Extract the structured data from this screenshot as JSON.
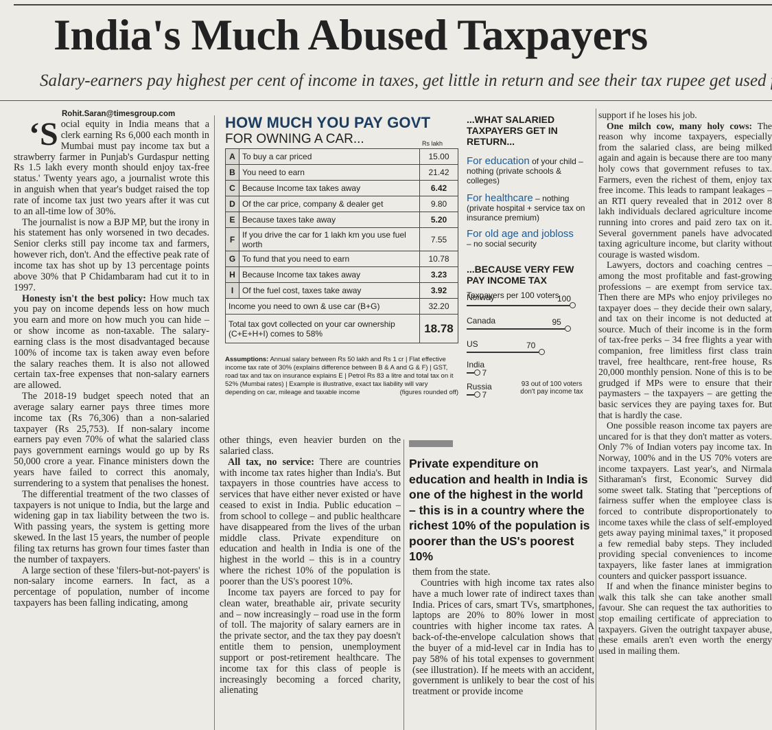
{
  "headline": "India's Much Abused Taxpayers",
  "subheadline": "Salary-earners pay highest per cent of income in taxes, get little in return and see their tax rupee get used for votes",
  "byline": "Rohit.Saran@timesgroup.com",
  "col1": {
    "dropcap": "‘S",
    "p1": "ocial equity in India means that a clerk earning Rs 6,000 each month in Mumbai must pay income tax but a strawberry farmer in Punjab's Gurdaspur netting Rs 1.5 lakh every month should enjoy tax-free status.' Twenty years ago, a journalist wrote this in anguish when that year's budget raised the top rate of income tax just two years after it was cut to an all-time low of 30%.",
    "p2": "The journalist is now a BJP MP, but the irony in his statement has only worsened in two decades. Senior clerks still pay income tax and farmers, however rich, don't. And the effective peak rate of income tax has shot up by 13 percentage points above 30% that P Chidambaram had cut it to in 1997.",
    "p3_lead": "Honesty isn't the best policy:",
    "p3": "How much tax you pay on income depends less on how much you earn and more on how much you can hide – or show income as non-taxable. The salary-earning class is the most disadvantaged because 100% of income tax is taken away even before the salary reaches them. It is also not allowed certain tax-free expenses that non-salary earners are allowed.",
    "p4": "The 2018-19 budget speech noted that an average salary earner pays three times more income tax (Rs 76,306) than a non-salaried taxpayer (Rs 25,753). If non-salary income earners pay even 70% of what the salaried class pays government earnings would go up by Rs 50,000 crore a year. Finance ministers down the years have failed to correct this anomaly, surrendering to a system that penalises the honest.",
    "p5": "The differential treatment of the two classes of taxpayers is not unique to India, but the large and widening gap in tax liability between the two is. With passing years, the system is getting more skewed. In the last 15 years, the number of people filing tax returns has grown four times faster than the number of taxpayers.",
    "p6": "A large section of these 'filers-but-not-payers' is non-salary income earners. In fact, as a percentage of population, number of income taxpayers has been falling indicating, among"
  },
  "col2": {
    "p1": "other things, even heavier burden on the salaried class.",
    "p2_lead": "All tax, no service:",
    "p2": "There are countries with income tax rates higher than India's. But taxpayers in those countries have access to services that have either never existed or have ceased to exist in India. Public education – from school to college – and public healthcare have disappeared from the lives of the urban middle class. Private expenditure on education and health in India is one of the highest in the world – this is in a country where the richest 10% of the population is poorer than the US's poorest 10%.",
    "p3": "Income tax payers are forced to pay for clean water, breathable air, private security and – now increasingly – road use in the form of toll. The majority of salary earners are in the private sector, and the tax they pay doesn't entitle them to pension, unemployment support or post-retirement healthcare. The income tax for this class of people is increasingly becoming a forced charity, alienating"
  },
  "pullquote": "Private expenditure on education and health in India is one of the highest in the world – this is in a country where the richest 10% of the population is poorer than the US's poorest 10%",
  "col3": {
    "p1": "them from the state.",
    "p2": "Countries with high income tax rates also have a much lower rate of indirect taxes than India. Prices of cars, smart TVs, smartphones, laptops are 20% to 80% lower in most countries with higher income tax rates. A back-of-the-envelope calculation shows that the buyer of a mid-level car in India has to pay 58% of his total expenses to government (see illustration). If he meets with an accident, government is unlikely to bear the cost of his treatment or provide income"
  },
  "col4": {
    "p1": "support if he loses his job.",
    "p2_lead": "One milch cow, many holy cows:",
    "p2": "The reason why income taxpayers, especially from the salaried class, are being milked again and again is because there are too many holy cows that government refuses to tax. Farmers, even the richest of them, enjoy tax free income. This leads to rampant leakages – an RTI query revealed that in 2012 over 8 lakh individuals declared agriculture income running into crores and paid zero tax on it. Several government panels have advocated taxing agriculture income, but clarity without courage is wasted wisdom.",
    "p3": "Lawyers, doctors and coaching centres – among the most profitable and fast-growing professions – are exempt from service tax. Then there are MPs who enjoy privileges no taxpayer does – they decide their own salary, and tax on their income is not deducted at source. Much of their income is in the form of tax-free perks – 34 free flights a year with companion, free limitless first class train travel, free healthcare, rent-free house, Rs 20,000 monthly pension. None of this is to be grudged if MPs were to ensure that their paymasters – the taxpayers – are getting the basic services they are paying taxes for. But that is hardly the case.",
    "p4": "One possible reason income tax payers are uncared for is that they don't matter as voters. Only 7% of Indian voters pay income tax. In Norway, 100% and in the US 70% voters are income taxpayers. Last year's, and Nirmala Sitharaman's first, Economic Survey did some sweet talk. Stating that \"perceptions of fairness suffer when the employee class is forced to contribute disproportionately to income taxes while the class of self-employed gets away paying minimal taxes,\" it proposed a few remedial baby steps. They included providing special conveniences to income taxpayers, like faster lanes at immigration counters and quicker passport issuance.",
    "p5": "If and when the finance minister begins to walk this talk she can take another small favour. She can request the tax authorities to stop emailing certificate of appreciation to taxpayers. Given the outright taxpayer abuse, these emails aren't even worth the energy used in mailing them."
  },
  "box": {
    "title": "HOW MUCH YOU PAY GOVT",
    "subtitle": "FOR OWNING A CAR...",
    "unit": "Rs lakh",
    "rows": [
      {
        "key": "A",
        "label": "To buy a car priced",
        "value": "15.00",
        "bold": false
      },
      {
        "key": "B",
        "label": "You need to earn",
        "value": "21.42",
        "bold": false
      },
      {
        "key": "C",
        "label": "Because Income tax takes away",
        "value": "6.42",
        "bold": true
      },
      {
        "key": "D",
        "label": "Of the car price, company & dealer get",
        "value": "9.80",
        "bold": false
      },
      {
        "key": "E",
        "label": "Because taxes take away",
        "value": "5.20",
        "bold": true
      },
      {
        "key": "F",
        "label": "If you drive the car for 1 lakh km you use fuel worth",
        "value": "7.55",
        "bold": false
      },
      {
        "key": "G",
        "label": "To fund that you need to earn",
        "value": "10.78",
        "bold": false
      },
      {
        "key": "H",
        "label": "Because Income tax takes away",
        "value": "3.23",
        "bold": true
      },
      {
        "key": "I",
        "label": "Of the fuel cost, taxes take away",
        "value": "3.92",
        "bold": true
      }
    ],
    "row_income_label": "Income you need to own & use car (B+G)",
    "row_income_value": "32.20",
    "row_total_label": "Total tax govt collected on your car ownership (C+E+H+I) comes to 58%",
    "row_total_value": "18.78",
    "assumptions_lead": "Assumptions:",
    "assumptions": "Annual salary between Rs 50 lakh and Rs 1 cr | Flat effective income tax rate of 30% (explains difference between B & A and G & F) | GST, road tax and tax on insurance explains E | Petrol Rs 83 a litre and total tax on it 52% (Mumbai rates) | Example is illustrative, exact tax liability will vary depending on car, mileage and taxable income",
    "figures_note": "(figures rounded off)",
    "get_head": "...WHAT SALARIED TAXPAYERS GET IN RETURN...",
    "edu_lead": "For education",
    "edu": "of your child – nothing (private schools & colleges)",
    "health_lead": "For healthcare",
    "health": "– nothing (private hospital + service tax on insurance premium)",
    "old_lead": "For old age and jobloss",
    "old": "– no social security",
    "few_head": "...BECAUSE VERY FEW PAY INCOME TAX",
    "per100": "Taxpayers per 100 voters",
    "countries": [
      {
        "name": "Norway",
        "value": 100
      },
      {
        "name": "Canada",
        "value": 95
      },
      {
        "name": "US",
        "value": 70
      },
      {
        "name": "India",
        "value": 7
      },
      {
        "name": "Russia",
        "value": 7
      }
    ],
    "note93": "93 out of 100 voters don't pay income tax"
  }
}
